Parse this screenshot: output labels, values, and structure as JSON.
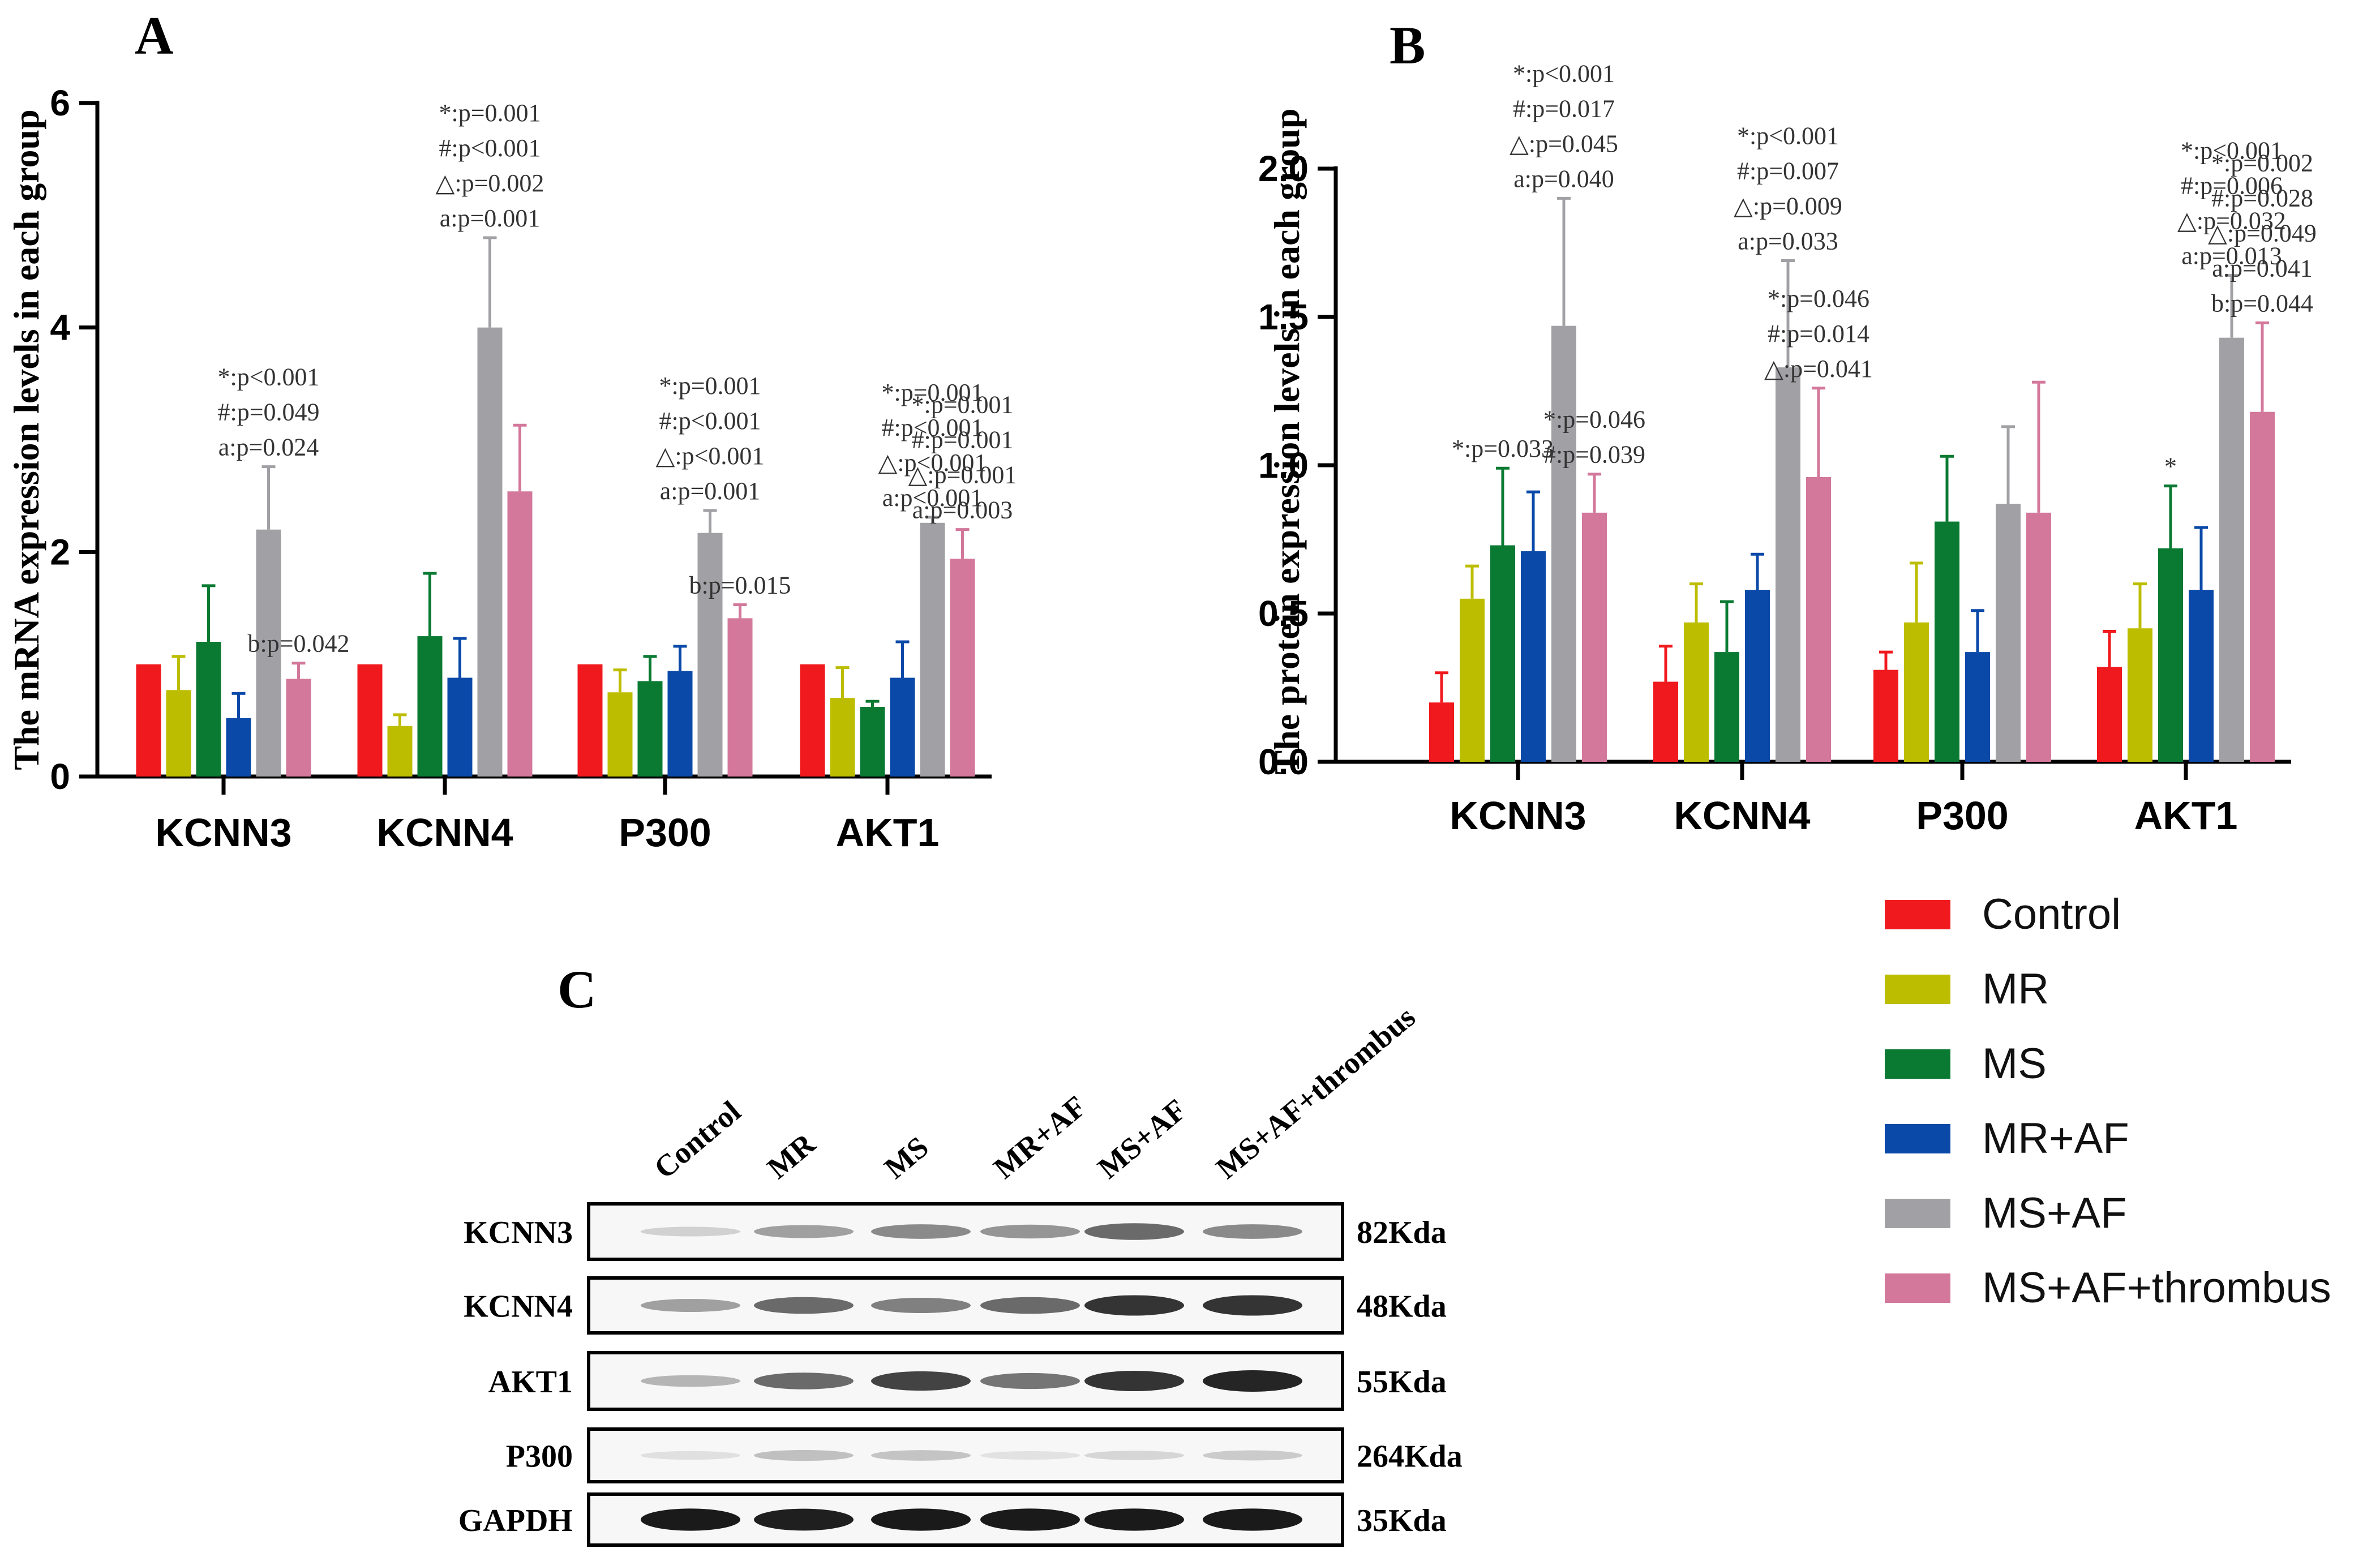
{
  "colors": {
    "Control": "#f0191e",
    "MR": "#bdbd00",
    "MS": "#0a7a32",
    "MR+AF": "#0a49a8",
    "MS+AF": "#a1a1a5",
    "MS+AF+thrombus": "#d3789b",
    "axis": "#000000",
    "annotation": "#333333"
  },
  "groups": [
    "Control",
    "MR",
    "MS",
    "MR+AF",
    "MS+AF",
    "MS+AF+thrombus"
  ],
  "legend": {
    "title": "",
    "items": [
      "Control",
      "MR",
      "MS",
      "MR+AF",
      "MS+AF",
      "MS+AF+thrombus"
    ]
  },
  "chart_data": [
    {
      "panel": "A",
      "type": "bar",
      "ylabel": "The mRNA expression levels in each group",
      "ylim": [
        0,
        6
      ],
      "yticks": [
        0,
        2,
        4,
        6
      ],
      "categories": [
        "KCNN3",
        "KCNN4",
        "P300",
        "AKT1"
      ],
      "series": [
        {
          "name": "Control",
          "values": [
            1.0,
            1.0,
            1.0,
            1.0
          ],
          "errors": [
            0,
            0,
            0,
            0
          ]
        },
        {
          "name": "MR",
          "values": [
            0.77,
            0.45,
            0.75,
            0.7
          ],
          "errors": [
            0.3,
            0.1,
            0.2,
            0.27
          ]
        },
        {
          "name": "MS",
          "values": [
            1.2,
            1.25,
            0.85,
            0.62
          ],
          "errors": [
            0.5,
            0.56,
            0.22,
            0.05
          ]
        },
        {
          "name": "MR+AF",
          "values": [
            0.52,
            0.88,
            0.94,
            0.88
          ],
          "errors": [
            0.22,
            0.35,
            0.22,
            0.32
          ]
        },
        {
          "name": "MS+AF",
          "values": [
            2.2,
            4.0,
            2.17,
            2.26
          ],
          "errors": [
            0.56,
            0.8,
            0.2,
            0.05
          ]
        },
        {
          "name": "MS+AF+thrombus",
          "values": [
            0.87,
            2.54,
            1.41,
            1.94
          ],
          "errors": [
            0.14,
            0.59,
            0.12,
            0.26
          ]
        }
      ],
      "annotations": [
        {
          "category": 0,
          "series": 4,
          "lines": [
            "*:p<0.001",
            "#:p=0.049",
            "a:p=0.024"
          ]
        },
        {
          "category": 0,
          "series": 5,
          "lines": [
            "b:p=0.042"
          ]
        },
        {
          "category": 1,
          "series": 4,
          "lines": [
            "*:p=0.001",
            "#:p<0.001",
            "△:p=0.002",
            "a:p=0.001"
          ]
        },
        {
          "category": 2,
          "series": 4,
          "lines": [
            "*:p=0.001",
            "#:p<0.001",
            "△:p<0.001",
            "a:p=0.001"
          ]
        },
        {
          "category": 2,
          "series": 5,
          "lines": [
            "b:p=0.015"
          ]
        },
        {
          "category": 3,
          "series": 4,
          "lines": [
            "*:p=0.001",
            "#:p<0.001",
            "△:p<0.001",
            "a:p<0.001"
          ]
        },
        {
          "category": 3,
          "series": 5,
          "lines": [
            "*:p=0.001",
            "#:p=0.001",
            "△:p=0.001",
            "a:p=0.003"
          ]
        }
      ]
    },
    {
      "panel": "B",
      "type": "bar",
      "ylabel": "The protein expression levels in each group",
      "ylim": [
        0,
        2.0
      ],
      "yticks": [
        0.0,
        0.5,
        1.0,
        1.5,
        2.0
      ],
      "yticklabels": [
        "0.0",
        "0.5",
        "1.0",
        "1.5",
        "2.0"
      ],
      "categories": [
        "KCNN3",
        "KCNN4",
        "P300",
        "AKT1"
      ],
      "series": [
        {
          "name": "Control",
          "values": [
            0.2,
            0.27,
            0.31,
            0.32
          ],
          "errors": [
            0.1,
            0.12,
            0.06,
            0.12
          ]
        },
        {
          "name": "MR",
          "values": [
            0.55,
            0.47,
            0.47,
            0.45
          ],
          "errors": [
            0.11,
            0.13,
            0.2,
            0.15
          ]
        },
        {
          "name": "MS",
          "values": [
            0.73,
            0.37,
            0.81,
            0.72
          ],
          "errors": [
            0.26,
            0.17,
            0.22,
            0.21
          ]
        },
        {
          "name": "MR+AF",
          "values": [
            0.71,
            0.58,
            0.37,
            0.58
          ],
          "errors": [
            0.2,
            0.12,
            0.14,
            0.21
          ]
        },
        {
          "name": "MS+AF",
          "values": [
            1.47,
            1.33,
            0.87,
            1.43
          ],
          "errors": [
            0.43,
            0.36,
            0.26,
            0.21
          ]
        },
        {
          "name": "MS+AF+thrombus",
          "values": [
            0.84,
            0.96,
            0.84,
            1.18
          ],
          "errors": [
            0.13,
            0.3,
            0.44,
            0.3
          ]
        }
      ],
      "annotations": [
        {
          "category": 0,
          "series": 2,
          "lines": [
            "*:p=0.033"
          ]
        },
        {
          "category": 0,
          "series": 4,
          "lines": [
            "*:p<0.001",
            "#:p=0.017",
            "△:p=0.045",
            "a:p=0.040"
          ]
        },
        {
          "category": 0,
          "series": 5,
          "lines": [
            "*:p=0.046",
            "#:p=0.039"
          ]
        },
        {
          "category": 1,
          "series": 4,
          "lines": [
            "*:p<0.001",
            "#:p=0.007",
            "△:p=0.009",
            "a:p=0.033"
          ]
        },
        {
          "category": 1,
          "series": 5,
          "lines": [
            "*:p=0.046",
            "#:p=0.014",
            "△:p=0.041"
          ]
        },
        {
          "category": 3,
          "series": 2,
          "lines": [
            "*"
          ]
        },
        {
          "category": 3,
          "series": 4,
          "lines": [
            "*:p<0.001",
            "#:p=0.006",
            "△:p=0.032",
            "a:p=0.013"
          ]
        },
        {
          "category": 3,
          "series": 5,
          "lines": [
            "*:p=0.002",
            "#:p=0.028",
            "△:p=0.049",
            "a:p=0.041",
            "b:p=0.044"
          ]
        }
      ]
    }
  ],
  "blot": {
    "panel": "C",
    "lanes": [
      "Control",
      "MR",
      "MS",
      "MR+AF",
      "MS+AF",
      "MS+AF+thrombus"
    ],
    "rows": [
      {
        "protein": "KCNN3",
        "size": "82Kda",
        "intensity": [
          0.12,
          0.35,
          0.45,
          0.4,
          0.6,
          0.45
        ]
      },
      {
        "protein": "KCNN4",
        "size": "48Kda",
        "intensity": [
          0.35,
          0.6,
          0.5,
          0.6,
          0.85,
          0.85
        ]
      },
      {
        "protein": "AKT1",
        "size": "55Kda",
        "intensity": [
          0.25,
          0.6,
          0.78,
          0.55,
          0.85,
          0.92
        ]
      },
      {
        "protein": "P300",
        "size": "264Kda",
        "intensity": [
          0.05,
          0.2,
          0.18,
          0.04,
          0.1,
          0.15
        ]
      },
      {
        "protein": "GAPDH",
        "size": "35Kda",
        "intensity": [
          0.97,
          0.95,
          0.97,
          0.97,
          0.97,
          0.97
        ]
      }
    ]
  }
}
